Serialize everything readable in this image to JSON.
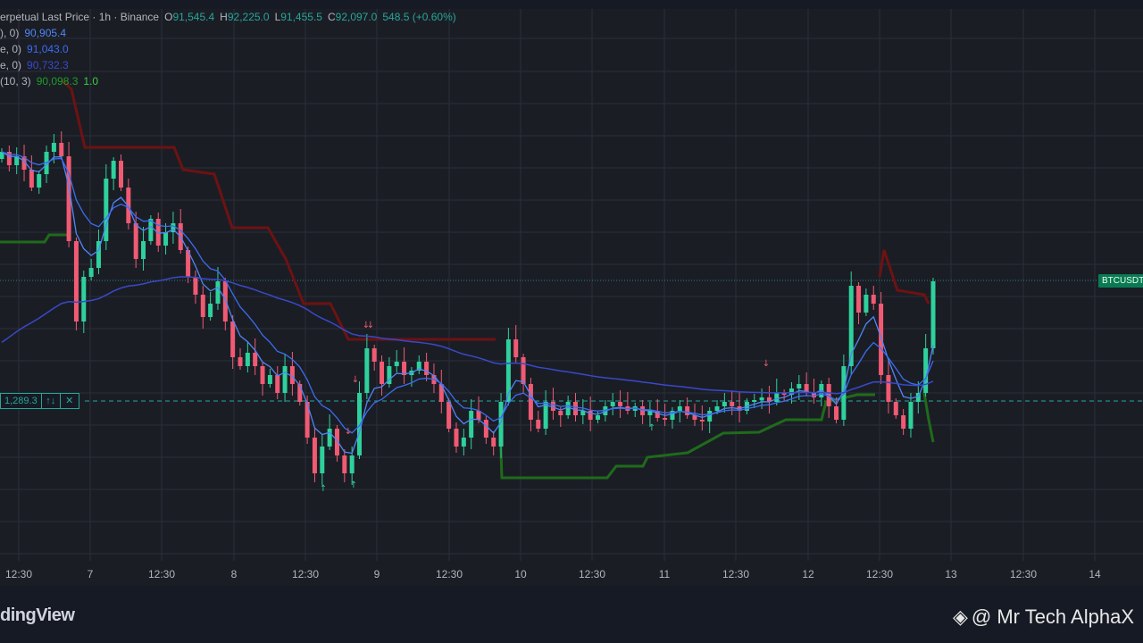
{
  "legend": {
    "symbol_info": "erpetual Last Price · 1h · Binance",
    "ohlc": {
      "o_label": "O",
      "o": "91,545.4",
      "h_label": "H",
      "h": "92,225.0",
      "l_label": "L",
      "l": "91,455.5",
      "c_label": "C",
      "c": "92,097.0",
      "change": "548.5 (+0.60%)"
    },
    "indicators": [
      {
        "label": "), 0)",
        "value": "90,905.4"
      },
      {
        "label": "e, 0)",
        "value": "91,043.0"
      },
      {
        "label": "e, 0)",
        "value": "90,732.3"
      },
      {
        "label": "(10, 3)",
        "value": "90,098.3",
        "extra": "1.0"
      }
    ]
  },
  "price_badge": "BTCUSDT",
  "position": {
    "qty": "1,289.3",
    "reverse_icon": "↑↓",
    "close_icon": "✕"
  },
  "time_axis": [
    "12:30",
    "7",
    "12:30",
    "8",
    "12:30",
    "9",
    "12:30",
    "10",
    "12:30",
    "11",
    "12:30",
    "12",
    "12:30",
    "13",
    "12:30",
    "14"
  ],
  "footer": {
    "brand": "dingView",
    "watermark": "@ Mr Tech AlphaX",
    "watermark_icon": "binance-diamond-icon"
  },
  "colors": {
    "up": "#26a69a",
    "up_bright": "#2ed19c",
    "down": "#f05a73",
    "ema_fast": "#4f86f7",
    "ema_mid": "#3a6df0",
    "ema_slow": "#3949c9",
    "supertrend_up": "#1f6b1a",
    "supertrend_down": "#6e1212",
    "grid": "#2a2e39",
    "bg": "#1b1d25"
  }
}
